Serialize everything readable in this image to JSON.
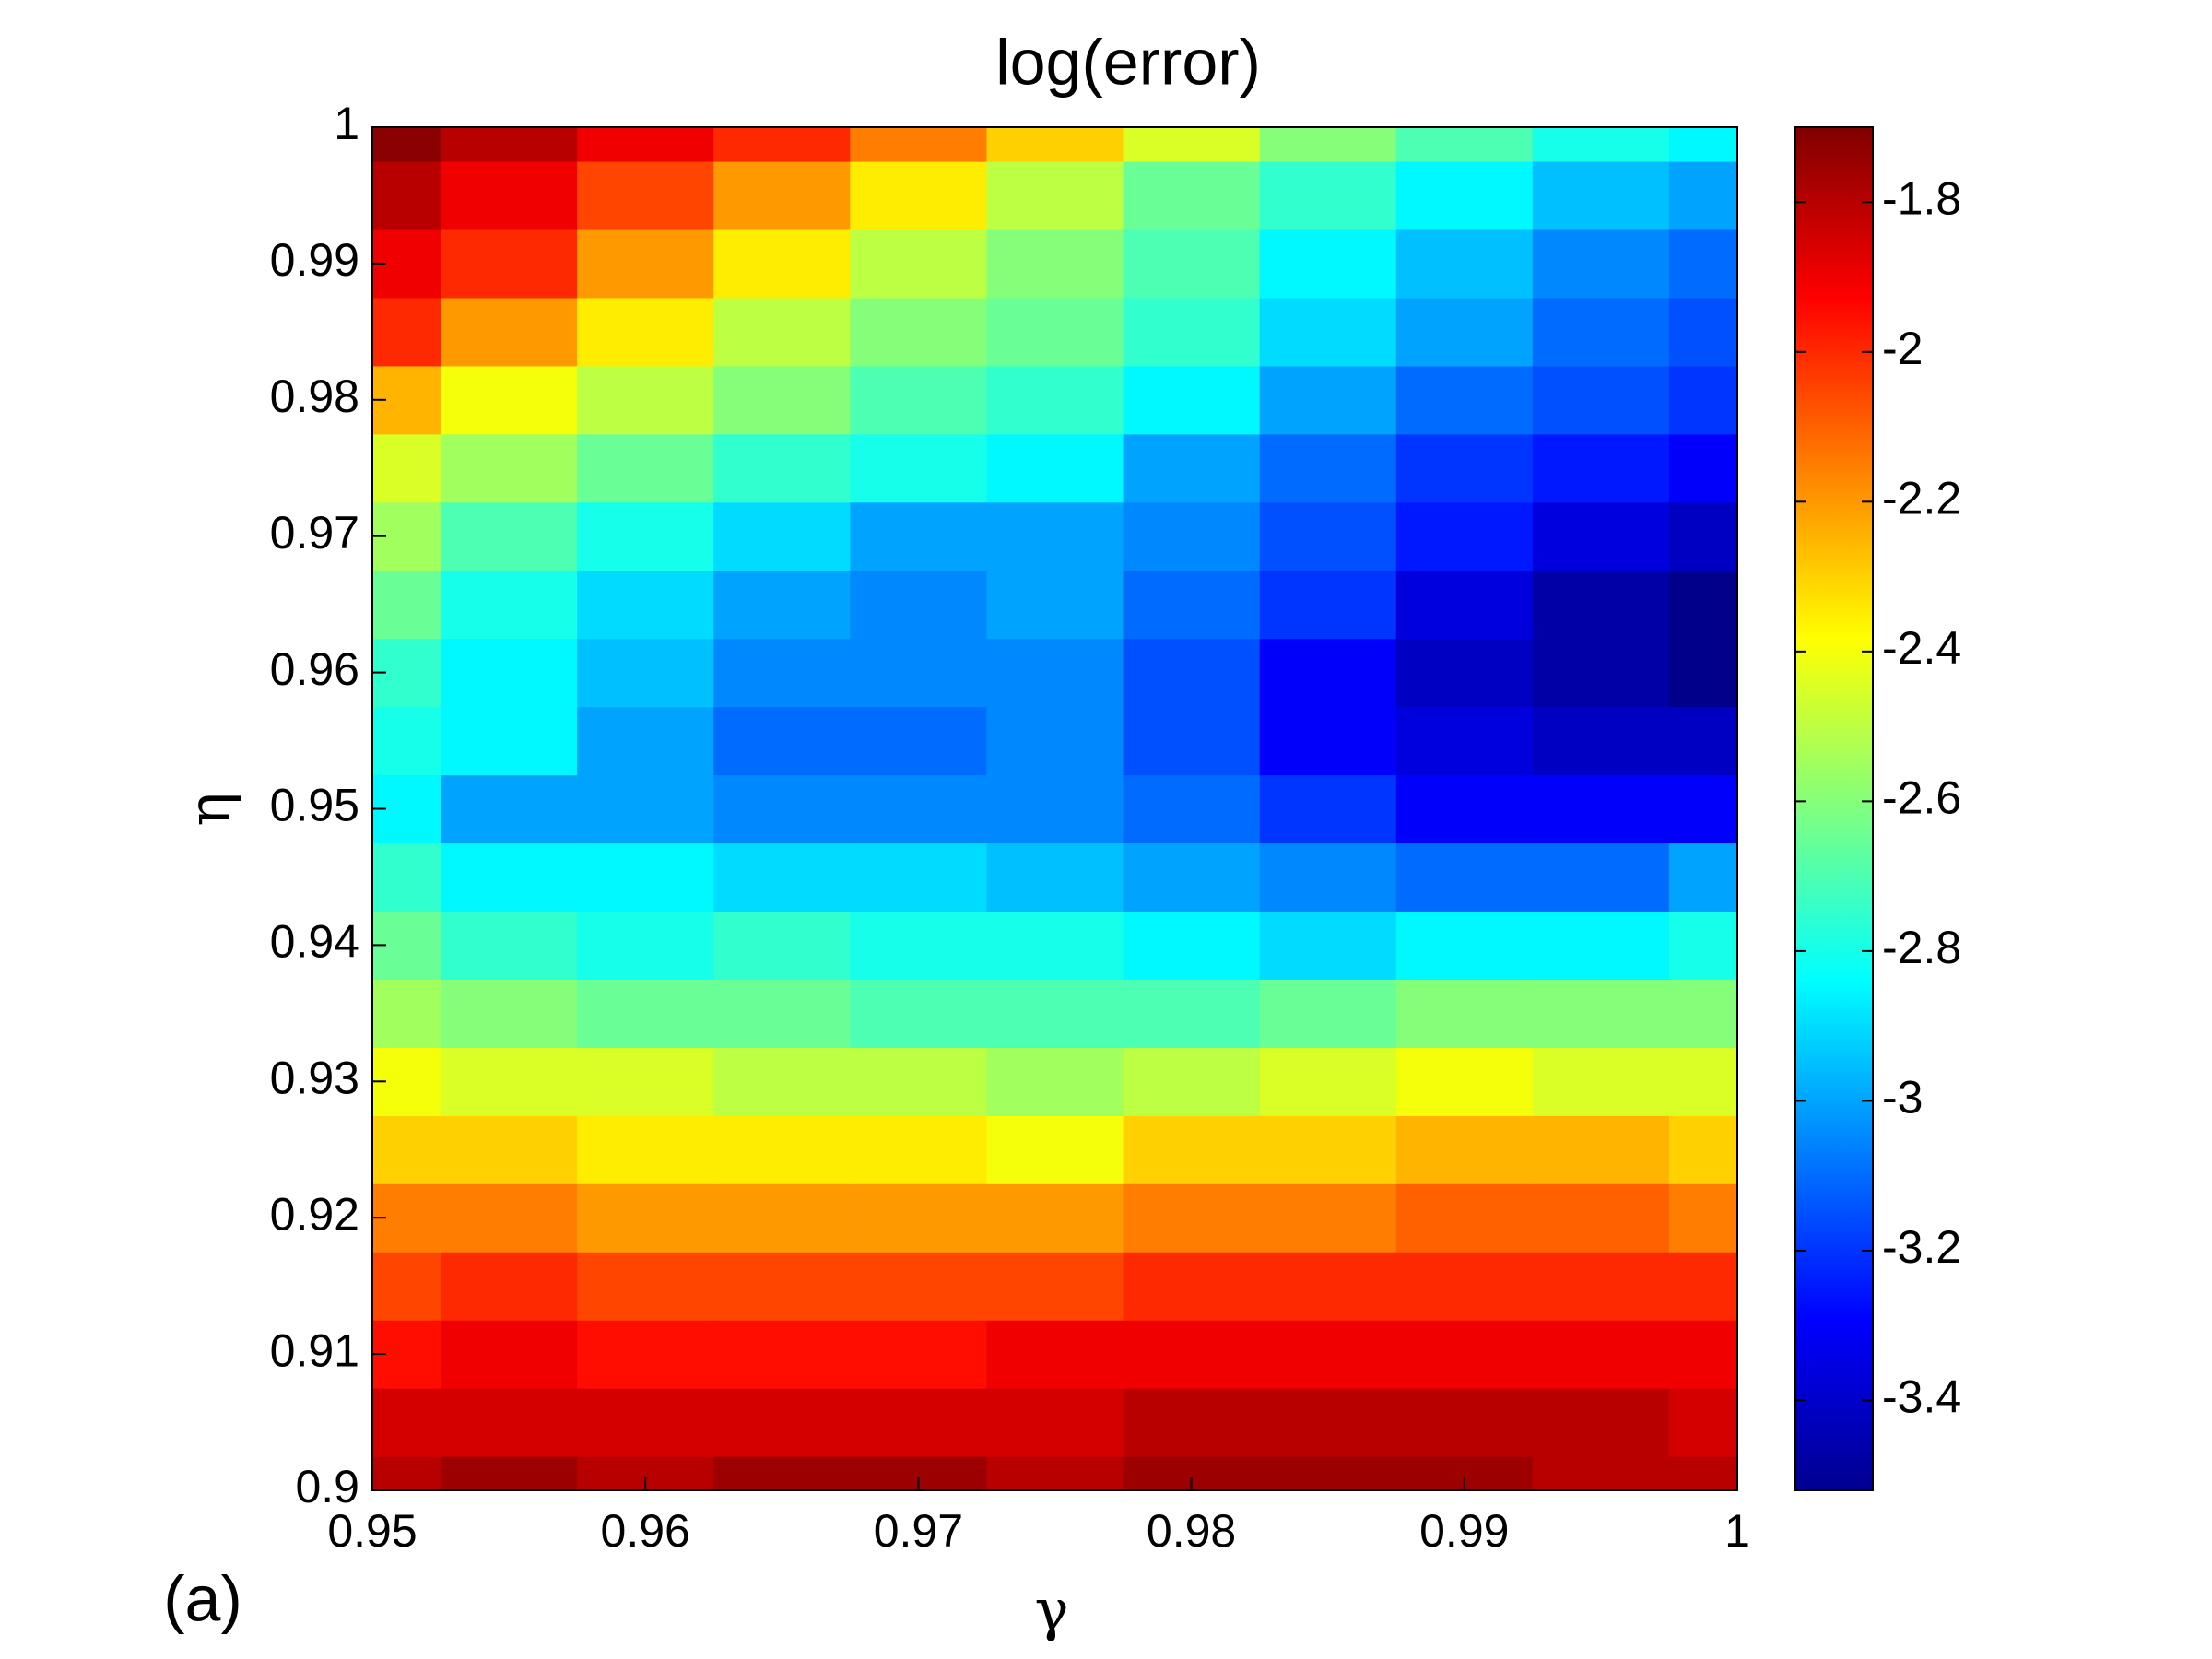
{
  "chart_data": {
    "type": "heatmap",
    "title": "log(error)",
    "x_label": "γ",
    "y_label": "η",
    "annotation": "(a)",
    "colormap": "jet",
    "x": [
      0.95,
      0.955,
      0.96,
      0.965,
      0.97,
      0.975,
      0.98,
      0.985,
      0.99,
      0.995,
      1.0
    ],
    "y": [
      0.9,
      0.905,
      0.91,
      0.915,
      0.92,
      0.925,
      0.93,
      0.935,
      0.94,
      0.945,
      0.95,
      0.955,
      0.96,
      0.965,
      0.97,
      0.975,
      0.98,
      0.985,
      0.99,
      0.995,
      1.0
    ],
    "z": [
      [
        -1.8,
        -1.75,
        -1.8,
        -1.75,
        -1.75,
        -1.8,
        -1.75,
        -1.75,
        -1.75,
        -1.8,
        -1.8
      ],
      [
        -1.85,
        -1.85,
        -1.85,
        -1.85,
        -1.85,
        -1.85,
        -1.8,
        -1.8,
        -1.8,
        -1.8,
        -1.85
      ],
      [
        -1.95,
        -1.9,
        -1.95,
        -1.95,
        -1.95,
        -1.9,
        -1.9,
        -1.9,
        -1.9,
        -1.9,
        -1.9
      ],
      [
        -2.05,
        -2.0,
        -2.05,
        -2.05,
        -2.05,
        -2.05,
        -2.0,
        -2.0,
        -2.0,
        -2.0,
        -2.0
      ],
      [
        -2.15,
        -2.15,
        -2.2,
        -2.2,
        -2.2,
        -2.2,
        -2.15,
        -2.15,
        -2.1,
        -2.1,
        -2.15
      ],
      [
        -2.3,
        -2.3,
        -2.35,
        -2.35,
        -2.35,
        -2.4,
        -2.3,
        -2.3,
        -2.25,
        -2.25,
        -2.3
      ],
      [
        -2.4,
        -2.45,
        -2.45,
        -2.5,
        -2.5,
        -2.55,
        -2.5,
        -2.45,
        -2.4,
        -2.45,
        -2.45
      ],
      [
        -2.55,
        -2.6,
        -2.65,
        -2.65,
        -2.7,
        -2.7,
        -2.7,
        -2.65,
        -2.6,
        -2.6,
        -2.6
      ],
      [
        -2.65,
        -2.75,
        -2.8,
        -2.75,
        -2.8,
        -2.8,
        -2.85,
        -2.9,
        -2.85,
        -2.85,
        -2.8
      ],
      [
        -2.75,
        -2.85,
        -2.85,
        -2.9,
        -2.9,
        -2.95,
        -3.0,
        -3.05,
        -3.1,
        -3.1,
        -3.0
      ],
      [
        -2.85,
        -3.0,
        -3.0,
        -3.05,
        -3.05,
        -3.05,
        -3.1,
        -3.2,
        -3.3,
        -3.3,
        -3.3
      ],
      [
        -2.8,
        -2.85,
        -3.0,
        -3.1,
        -3.1,
        -3.05,
        -3.15,
        -3.3,
        -3.35,
        -3.4,
        -3.4
      ],
      [
        -2.75,
        -2.85,
        -2.95,
        -3.05,
        -3.05,
        -3.05,
        -3.15,
        -3.3,
        -3.4,
        -3.45,
        -3.5
      ],
      [
        -2.65,
        -2.8,
        -2.9,
        -3.0,
        -3.05,
        -3.0,
        -3.1,
        -3.2,
        -3.35,
        -3.45,
        -3.5
      ],
      [
        -2.55,
        -2.7,
        -2.8,
        -2.9,
        -3.0,
        -3.0,
        -3.05,
        -3.15,
        -3.25,
        -3.35,
        -3.4
      ],
      [
        -2.45,
        -2.55,
        -2.65,
        -2.75,
        -2.8,
        -2.85,
        -3.0,
        -3.1,
        -3.2,
        -3.25,
        -3.3
      ],
      [
        -2.25,
        -2.4,
        -2.5,
        -2.6,
        -2.7,
        -2.75,
        -2.85,
        -3.0,
        -3.1,
        -3.15,
        -3.2
      ],
      [
        -2.0,
        -2.2,
        -2.35,
        -2.5,
        -2.6,
        -2.65,
        -2.75,
        -2.9,
        -3.0,
        -3.1,
        -3.15
      ],
      [
        -1.9,
        -2.0,
        -2.2,
        -2.35,
        -2.5,
        -2.6,
        -2.7,
        -2.85,
        -2.95,
        -3.05,
        -3.1
      ],
      [
        -1.8,
        -1.9,
        -2.05,
        -2.2,
        -2.35,
        -2.5,
        -2.65,
        -2.75,
        -2.85,
        -2.95,
        -3.0
      ],
      [
        -1.72,
        -1.8,
        -1.9,
        -2.0,
        -2.15,
        -2.3,
        -2.45,
        -2.6,
        -2.7,
        -2.8,
        -2.85
      ]
    ],
    "xlim": [
      0.95,
      1
    ],
    "xticks": [
      0.95,
      0.96,
      0.97,
      0.98,
      0.99,
      1
    ],
    "ylim": [
      0.9,
      1
    ],
    "yticks": [
      0.9,
      0.91,
      0.92,
      0.93,
      0.94,
      0.95,
      0.96,
      0.97,
      0.98,
      0.99,
      1
    ],
    "clim": [
      -3.52,
      -1.7
    ],
    "cticks": [
      -3.4,
      -3.2,
      -3,
      -2.8,
      -2.6,
      -2.4,
      -2.2,
      -2,
      -1.8
    ]
  }
}
